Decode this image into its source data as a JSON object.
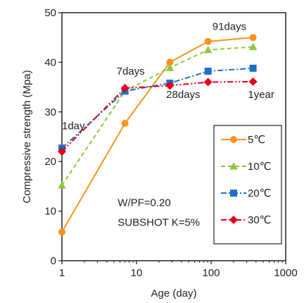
{
  "chart_data": {
    "type": "line",
    "x_scale": "log",
    "xlim": [
      1,
      1000
    ],
    "ylim": [
      0,
      50
    ],
    "x_ticks": [
      1,
      10,
      100,
      1000
    ],
    "y_ticks": [
      0,
      10,
      20,
      30,
      40,
      50
    ],
    "xlabel": "Age (day)",
    "ylabel": "Compressive strength (Mpa)",
    "grid": false,
    "legend_position": "bottom-right",
    "x": [
      1,
      7,
      28,
      91,
      365
    ],
    "series": [
      {
        "name": "5℃",
        "values": [
          5.8,
          27.7,
          40.0,
          44.2,
          45.0
        ],
        "color": "#f7941d",
        "marker": "circle",
        "dash": "solid"
      },
      {
        "name": "10℃",
        "values": [
          15.2,
          34.2,
          38.9,
          42.5,
          43.1
        ],
        "color": "#8dc63f",
        "marker": "triangle",
        "dash": "dashed"
      },
      {
        "name": "20℃",
        "values": [
          22.7,
          34.2,
          35.8,
          38.2,
          38.8
        ],
        "color": "#1f6fc5",
        "marker": "square",
        "dash": "dashdot"
      },
      {
        "name": "30℃",
        "values": [
          22.0,
          34.8,
          35.3,
          36.0,
          36.1
        ],
        "color": "#e3001b",
        "marker": "diamond",
        "dash": "dashdotdot"
      }
    ],
    "annotations": [
      {
        "text": "1day",
        "x": 1,
        "y": 26.5
      },
      {
        "text": "7days",
        "x": 5.4,
        "y": 37.5
      },
      {
        "text": "28days",
        "x": 25,
        "y": 32.8
      },
      {
        "text": "91days",
        "x": 104,
        "y": 46.5
      },
      {
        "text": "1year",
        "x": 312,
        "y": 32.8
      },
      {
        "text": "W/PF=0.20",
        "x": 5.6,
        "y": 11.0
      },
      {
        "text": "SUBSHOT K=5%",
        "x": 5.6,
        "y": 7.0
      }
    ]
  }
}
